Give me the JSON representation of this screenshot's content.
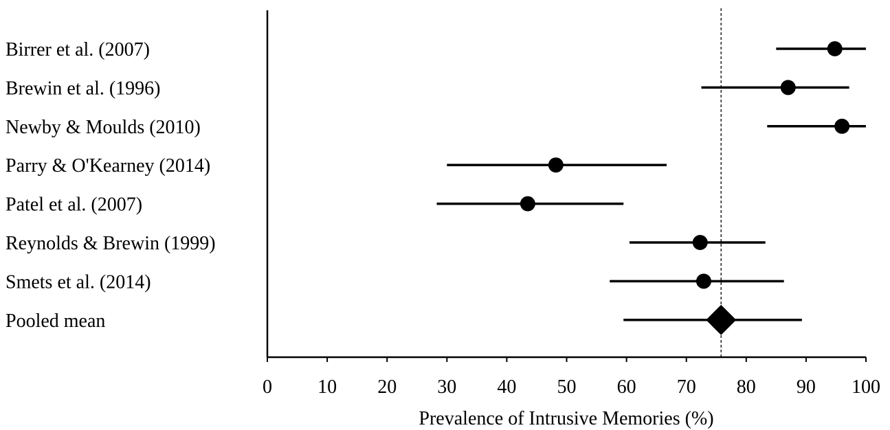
{
  "chart_data": {
    "type": "forest",
    "xlabel": "Prevalence of Intrusive Memories (%)",
    "xlim": [
      0,
      100
    ],
    "xticks": [
      0,
      10,
      20,
      30,
      40,
      50,
      60,
      70,
      80,
      90,
      100
    ],
    "reference_line": 75.8,
    "studies": [
      {
        "label": "Birrer et al. (2007)",
        "estimate": 94.8,
        "lower": 85.0,
        "upper": 100.0,
        "marker": "circle"
      },
      {
        "label": "Brewin et al. (1996)",
        "estimate": 87.0,
        "lower": 72.5,
        "upper": 97.2,
        "marker": "circle"
      },
      {
        "label": "Newby & Moulds (2010)",
        "estimate": 96.0,
        "lower": 83.5,
        "upper": 100.0,
        "marker": "circle"
      },
      {
        "label": "Parry & O'Kearney (2014)",
        "estimate": 48.2,
        "lower": 30.0,
        "upper": 66.7,
        "marker": "circle"
      },
      {
        "label": "Patel et al. (2007)",
        "estimate": 43.5,
        "lower": 28.3,
        "upper": 59.5,
        "marker": "circle"
      },
      {
        "label": "Reynolds & Brewin (1999)",
        "estimate": 72.3,
        "lower": 60.5,
        "upper": 83.2,
        "marker": "circle"
      },
      {
        "label": "Smets et al. (2014)",
        "estimate": 72.9,
        "lower": 57.2,
        "upper": 86.3,
        "marker": "circle"
      },
      {
        "label": "Pooled mean",
        "estimate": 75.8,
        "lower": 59.5,
        "upper": 89.3,
        "marker": "diamond"
      }
    ]
  }
}
